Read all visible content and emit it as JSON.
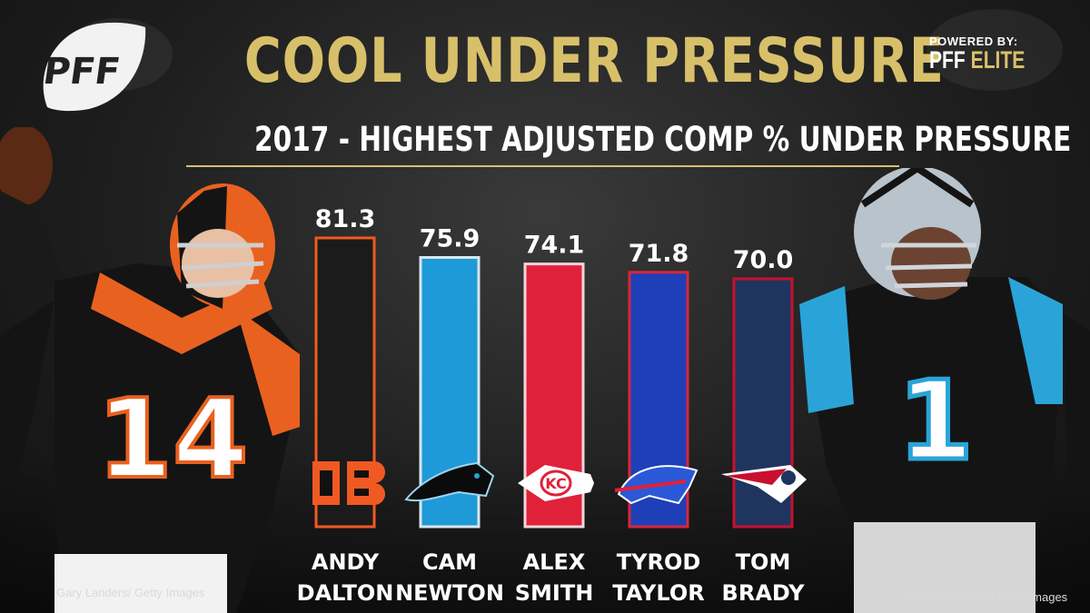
{
  "header": {
    "logo_text": "PFF",
    "title": "COOL UNDER PRESSURE",
    "subtitle": "2017 - HIGHEST ADJUSTED COMP % UNDER PRESSURE",
    "powered_label": "POWERED BY:",
    "powered_brand_a": "PFF",
    "powered_brand_b": "ELITE"
  },
  "credits": {
    "left": "Gary Landers/ Getty Images",
    "right": "Grant Halverson/ Getty Images"
  },
  "players": {
    "left_number": "14",
    "right_number": "1"
  },
  "chart_data": {
    "type": "bar",
    "title": "COOL UNDER PRESSURE",
    "subtitle": "2017 - HIGHEST ADJUSTED COMP % UNDER PRESSURE",
    "categories": [
      "ANDY DALTON",
      "CAM NEWTON",
      "ALEX SMITH",
      "TYROD TAYLOR",
      "TOM BRADY"
    ],
    "name_lines": [
      [
        "ANDY",
        "DALTON"
      ],
      [
        "CAM",
        "NEWTON"
      ],
      [
        "ALEX",
        "SMITH"
      ],
      [
        "TYROD",
        "TAYLOR"
      ],
      [
        "TOM",
        "BRADY"
      ]
    ],
    "values": [
      81.3,
      75.9,
      74.1,
      71.8,
      70.0
    ],
    "value_labels": [
      "81.3",
      "75.9",
      "74.1",
      "71.8",
      "70.0"
    ],
    "teams": [
      "Bengals",
      "Panthers",
      "Chiefs",
      "Bills",
      "Patriots"
    ],
    "bar_colors": [
      "#1b1b1b",
      "#1f9ad8",
      "#e0213a",
      "#1e3fb8",
      "#1f3560"
    ],
    "bar_borders": [
      "#f05a22",
      "#d9e6ee",
      "#f4d6da",
      "#d8263d",
      "#c8102e"
    ],
    "xlabel": "",
    "ylabel": "",
    "legend": "none",
    "grid": false
  }
}
